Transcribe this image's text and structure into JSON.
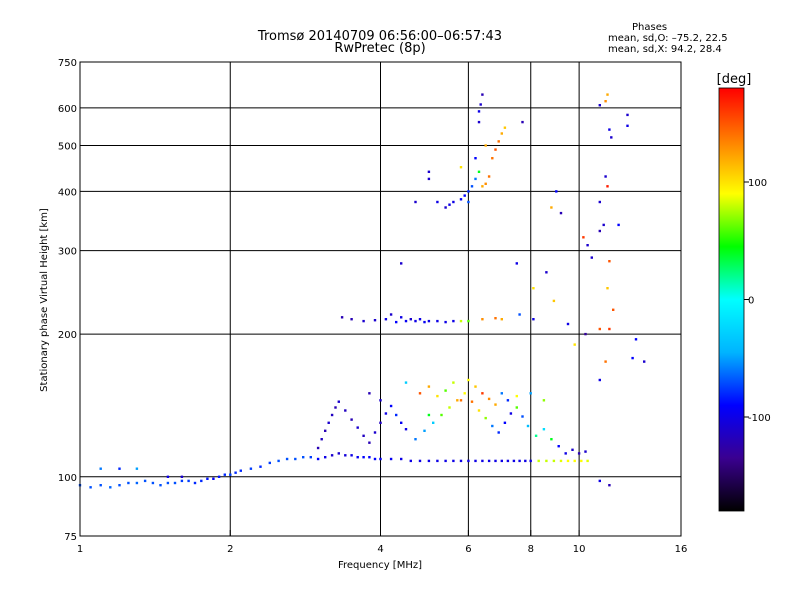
{
  "chart_data": {
    "type": "scatter",
    "title": "Tromsø 20140709 06:56:00–06:57:43",
    "subtitle": "RwPretec (8p)",
    "xlabel": "Frequency [MHz]",
    "ylabel": "Stationary phase Virtual Height [km]",
    "x_scale": "log",
    "y_scale": "log",
    "xlim": [
      1,
      16
    ],
    "ylim": [
      75,
      750
    ],
    "x_ticks": [
      1,
      2,
      4,
      6,
      8,
      10,
      16
    ],
    "x_tick_labels": [
      "1",
      "2",
      "4",
      "6",
      "8",
      "10",
      "16"
    ],
    "y_ticks": [
      75,
      100,
      200,
      300,
      400,
      500,
      600,
      750
    ],
    "y_tick_labels": [
      "75",
      "100",
      "200",
      "300",
      "400",
      "500",
      "600",
      "750"
    ],
    "grid": true,
    "phase_info": {
      "title": "Phases",
      "line_o": "mean, sd,O: –75.2, 22.5",
      "line_x": "mean, sd,X:  94.2, 28.4"
    },
    "colorbar": {
      "label": "[deg]",
      "range": [
        -180,
        180
      ],
      "ticks": [
        100,
        0,
        -100
      ],
      "tick_labels": [
        "100",
        "0",
        "-100"
      ],
      "colors": [
        "#000000",
        "#3a0090",
        "#0000ff",
        "#00b4ff",
        "#00ffff",
        "#00ff00",
        "#ffff00",
        "#ff8000",
        "#ff0000"
      ]
    },
    "series": [
      {
        "points": [
          [
            1.0,
            96,
            -70
          ],
          [
            1.05,
            95,
            -70
          ],
          [
            1.1,
            96,
            -70
          ],
          [
            1.15,
            95,
            -65
          ],
          [
            1.2,
            96,
            -70
          ],
          [
            1.25,
            97,
            -70
          ],
          [
            1.3,
            97,
            -65
          ],
          [
            1.35,
            98,
            -70
          ],
          [
            1.4,
            97,
            -70
          ],
          [
            1.45,
            96,
            -70
          ],
          [
            1.5,
            97,
            -70
          ],
          [
            1.55,
            97,
            -70
          ],
          [
            1.6,
            98,
            -75
          ],
          [
            1.65,
            98,
            -75
          ],
          [
            1.7,
            97,
            -80
          ],
          [
            1.75,
            98,
            -80
          ],
          [
            1.8,
            99,
            -85
          ],
          [
            1.85,
            99,
            -90
          ],
          [
            1.9,
            100,
            -85
          ],
          [
            1.95,
            101,
            -80
          ],
          [
            2.0,
            101,
            -75
          ],
          [
            2.05,
            102,
            -80
          ],
          [
            2.1,
            103,
            -80
          ],
          [
            2.2,
            104,
            -75
          ],
          [
            2.3,
            105,
            -80
          ],
          [
            2.4,
            107,
            -75
          ],
          [
            2.5,
            108,
            -70
          ],
          [
            2.6,
            109,
            -70
          ],
          [
            2.7,
            109,
            -70
          ],
          [
            2.8,
            110,
            -70
          ],
          [
            2.9,
            110,
            -75
          ],
          [
            3.0,
            109,
            -90
          ],
          [
            3.1,
            110,
            -100
          ],
          [
            3.2,
            111,
            -110
          ],
          [
            3.3,
            112,
            -110
          ],
          [
            3.4,
            111,
            -105
          ],
          [
            3.5,
            111,
            -100
          ],
          [
            3.6,
            110,
            -95
          ],
          [
            3.7,
            110,
            -90
          ],
          [
            3.8,
            110,
            -90
          ],
          [
            3.9,
            109,
            -90
          ],
          [
            4.0,
            109,
            -95
          ],
          [
            4.2,
            109,
            -95
          ],
          [
            4.4,
            109,
            -100
          ],
          [
            4.6,
            108,
            -100
          ],
          [
            4.8,
            108,
            -100
          ],
          [
            5.0,
            108,
            -100
          ],
          [
            5.2,
            108,
            -100
          ],
          [
            5.4,
            108,
            -100
          ],
          [
            5.6,
            108,
            -100
          ],
          [
            5.8,
            108,
            -100
          ],
          [
            6.0,
            108,
            -100
          ],
          [
            6.2,
            108,
            -100
          ],
          [
            6.4,
            108,
            -100
          ],
          [
            6.6,
            108,
            -100
          ],
          [
            6.8,
            108,
            -100
          ],
          [
            7.0,
            108,
            -100
          ],
          [
            7.2,
            108,
            -100
          ],
          [
            7.4,
            108,
            -100
          ],
          [
            7.6,
            108,
            -100
          ],
          [
            7.8,
            108,
            -100
          ],
          [
            8.0,
            108,
            -100
          ],
          [
            8.3,
            108,
            80
          ],
          [
            8.6,
            108,
            80
          ],
          [
            8.9,
            108,
            80
          ],
          [
            9.2,
            108,
            85
          ],
          [
            9.5,
            108,
            90
          ],
          [
            9.8,
            108,
            90
          ],
          [
            10.1,
            108,
            90
          ],
          [
            10.4,
            108,
            85
          ],
          [
            1.1,
            104,
            -60
          ],
          [
            1.2,
            104,
            -80
          ],
          [
            1.3,
            104,
            -50
          ],
          [
            1.5,
            100,
            -100
          ],
          [
            1.6,
            100,
            -110
          ],
          [
            3.0,
            115,
            -120
          ],
          [
            3.05,
            120,
            -115
          ],
          [
            3.1,
            125,
            -120
          ],
          [
            3.15,
            130,
            -110
          ],
          [
            3.2,
            135,
            -115
          ],
          [
            3.25,
            140,
            -120
          ],
          [
            3.3,
            144,
            -110
          ],
          [
            3.4,
            138,
            -115
          ],
          [
            3.5,
            132,
            -120
          ],
          [
            3.6,
            127,
            -110
          ],
          [
            3.7,
            122,
            -115
          ],
          [
            3.8,
            118,
            -120
          ],
          [
            3.9,
            124,
            -110
          ],
          [
            4.0,
            130,
            -115
          ],
          [
            4.1,
            136,
            -100
          ],
          [
            4.2,
            141,
            -90
          ],
          [
            4.3,
            135,
            -80
          ],
          [
            4.4,
            130,
            -95
          ],
          [
            4.5,
            126,
            -100
          ],
          [
            4.7,
            120,
            -60
          ],
          [
            4.9,
            125,
            -50
          ],
          [
            5.1,
            130,
            -30
          ],
          [
            5.3,
            135,
            60
          ],
          [
            5.5,
            140,
            80
          ],
          [
            5.7,
            145,
            120
          ],
          [
            5.9,
            150,
            90
          ],
          [
            6.1,
            144,
            140
          ],
          [
            6.3,
            138,
            100
          ],
          [
            6.5,
            133,
            70
          ],
          [
            6.7,
            128,
            -60
          ],
          [
            6.9,
            124,
            -80
          ],
          [
            7.1,
            130,
            -90
          ],
          [
            7.3,
            136,
            -100
          ],
          [
            7.5,
            140,
            60
          ],
          [
            7.7,
            134,
            -70
          ],
          [
            7.9,
            128,
            -40
          ],
          [
            8.2,
            122,
            20
          ],
          [
            8.5,
            126,
            -20
          ],
          [
            8.8,
            120,
            40
          ],
          [
            9.1,
            116,
            -90
          ],
          [
            9.4,
            112,
            -100
          ],
          [
            9.7,
            114,
            -110
          ],
          [
            10.0,
            112,
            -120
          ],
          [
            10.3,
            113,
            -110
          ],
          [
            4.8,
            150,
            150
          ],
          [
            5.0,
            155,
            120
          ],
          [
            5.2,
            148,
            100
          ],
          [
            5.4,
            152,
            60
          ],
          [
            5.6,
            158,
            80
          ],
          [
            5.8,
            145,
            140
          ],
          [
            6.0,
            160,
            90
          ],
          [
            6.2,
            155,
            110
          ],
          [
            6.4,
            150,
            160
          ],
          [
            6.6,
            146,
            130
          ],
          [
            6.8,
            142,
            120
          ],
          [
            7.0,
            150,
            -60
          ],
          [
            7.2,
            145,
            -80
          ],
          [
            7.5,
            148,
            90
          ],
          [
            8.0,
            150,
            -50
          ],
          [
            8.5,
            145,
            70
          ],
          [
            4.0,
            145,
            -110
          ],
          [
            3.8,
            150,
            -120
          ],
          [
            4.5,
            158,
            -30
          ],
          [
            5.0,
            135,
            40
          ],
          [
            4.6,
            215,
            -110
          ],
          [
            4.1,
            215,
            -100
          ],
          [
            4.2,
            220,
            -110
          ],
          [
            4.3,
            212,
            -90
          ],
          [
            4.4,
            217,
            -100
          ],
          [
            4.5,
            213,
            -95
          ],
          [
            4.7,
            213,
            -100
          ],
          [
            4.8,
            215,
            -100
          ],
          [
            4.9,
            212,
            -95
          ],
          [
            5.0,
            213,
            -100
          ],
          [
            5.2,
            213,
            -100
          ],
          [
            5.4,
            212,
            -100
          ],
          [
            5.6,
            213,
            -100
          ],
          [
            5.8,
            213,
            80
          ],
          [
            6.0,
            213,
            60
          ],
          [
            3.35,
            217,
            -120
          ],
          [
            3.5,
            215,
            -120
          ],
          [
            3.7,
            213,
            -110
          ],
          [
            3.9,
            214,
            -110
          ],
          [
            6.4,
            215,
            130
          ],
          [
            6.8,
            216,
            140
          ],
          [
            7.0,
            215,
            120
          ],
          [
            7.6,
            220,
            -70
          ],
          [
            5.0,
            425,
            -110
          ],
          [
            5.0,
            440,
            -110
          ],
          [
            5.2,
            380,
            -100
          ],
          [
            5.4,
            370,
            -110
          ],
          [
            5.5,
            375,
            -100
          ],
          [
            5.6,
            380,
            -100
          ],
          [
            5.8,
            385,
            -90
          ],
          [
            5.9,
            392,
            -90
          ],
          [
            6.0,
            400,
            -80
          ],
          [
            6.1,
            410,
            -70
          ],
          [
            6.2,
            425,
            -60
          ],
          [
            6.3,
            440,
            40
          ],
          [
            6.4,
            410,
            120
          ],
          [
            6.5,
            415,
            130
          ],
          [
            6.6,
            430,
            140
          ],
          [
            6.7,
            470,
            140
          ],
          [
            6.8,
            490,
            150
          ],
          [
            6.9,
            510,
            140
          ],
          [
            7.0,
            530,
            120
          ],
          [
            7.1,
            545,
            110
          ],
          [
            6.3,
            590,
            -100
          ],
          [
            6.35,
            610,
            -110
          ],
          [
            6.4,
            640,
            -120
          ],
          [
            6.3,
            560,
            -110
          ],
          [
            6.0,
            380,
            -70
          ],
          [
            5.8,
            450,
            100
          ],
          [
            6.2,
            470,
            -90
          ],
          [
            6.5,
            500,
            120
          ],
          [
            4.7,
            380,
            -110
          ],
          [
            7.7,
            560,
            -120
          ],
          [
            7.5,
            282,
            -100
          ],
          [
            4.4,
            282,
            -110
          ],
          [
            8.1,
            250,
            100
          ],
          [
            8.6,
            270,
            -110
          ],
          [
            8.8,
            370,
            120
          ],
          [
            8.9,
            235,
            110
          ],
          [
            9.0,
            400,
            -90
          ],
          [
            9.2,
            360,
            -120
          ],
          [
            9.8,
            190,
            100
          ],
          [
            10.2,
            320,
            160
          ],
          [
            10.4,
            308,
            -110
          ],
          [
            10.6,
            290,
            -110
          ],
          [
            11.0,
            608,
            -110
          ],
          [
            11.3,
            620,
            130
          ],
          [
            11.4,
            640,
            120
          ],
          [
            11.5,
            540,
            -100
          ],
          [
            11.6,
            520,
            -110
          ],
          [
            11.0,
            380,
            -110
          ],
          [
            11.3,
            430,
            -110
          ],
          [
            11.4,
            410,
            170
          ],
          [
            11.0,
            330,
            -120
          ],
          [
            11.2,
            340,
            -110
          ],
          [
            11.5,
            285,
            150
          ],
          [
            11.4,
            250,
            110
          ],
          [
            11.7,
            225,
            150
          ],
          [
            11.0,
            205,
            150
          ],
          [
            11.5,
            205,
            160
          ],
          [
            11.3,
            175,
            140
          ],
          [
            11.0,
            160,
            -100
          ],
          [
            12.5,
            580,
            -110
          ],
          [
            12.5,
            550,
            -100
          ],
          [
            12.0,
            340,
            -90
          ],
          [
            13.0,
            195,
            -90
          ],
          [
            13.5,
            175,
            -110
          ],
          [
            12.8,
            178,
            -90
          ],
          [
            11.0,
            98,
            -100
          ],
          [
            11.5,
            96,
            -120
          ],
          [
            10.3,
            200,
            -130
          ],
          [
            9.5,
            210,
            -100
          ],
          [
            8.1,
            215,
            -100
          ]
        ]
      }
    ]
  }
}
